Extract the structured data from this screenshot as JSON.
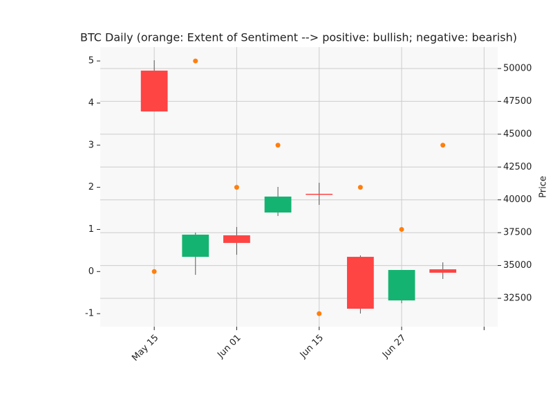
{
  "chart_data": {
    "type": "candlestick",
    "title": "BTC Daily (orange: Extent of Sentiment --> positive: bullish; negative: bearish)",
    "y2label": "Price",
    "x": [
      0,
      1,
      2,
      3,
      4,
      5,
      6,
      7
    ],
    "xlim": [
      -1.31,
      8.33
    ],
    "xticks": [
      {
        "value": 0,
        "label": "May 15"
      },
      {
        "value": 2,
        "label": "Jun 01"
      },
      {
        "value": 4,
        "label": "Jun 15"
      },
      {
        "value": 6,
        "label": "Jun 27"
      },
      {
        "value": 8,
        "label": null
      }
    ],
    "open": [
      49840,
      35660,
      37300,
      39035,
      40460,
      35660,
      32340,
      34710
    ],
    "high": [
      50630,
      37507,
      37930,
      40986,
      41300,
      35770,
      34660,
      35240
    ],
    "low": [
      46730,
      34290,
      35820,
      38770,
      39615,
      31340,
      32130,
      33975
    ],
    "close": [
      46730,
      37350,
      36720,
      40248,
      40410,
      31710,
      34660,
      34450
    ],
    "up_color": "#15b371",
    "down_color": "#ff4444",
    "wick_color": "#555555",
    "y2lim": [
      30339,
      51634
    ],
    "y2ticks": [
      32500,
      35000,
      37500,
      40000,
      42500,
      45000,
      47500,
      50000
    ],
    "sentiment": {
      "color": "#ff7f0e",
      "values": [
        0,
        5,
        2,
        3,
        -1,
        2,
        1,
        3
      ]
    },
    "ylim": [
      -1.31,
      5.33
    ],
    "yticks": [
      -1,
      0,
      1,
      2,
      3,
      4,
      5
    ],
    "grid": true,
    "background": "#f8f8f8"
  }
}
